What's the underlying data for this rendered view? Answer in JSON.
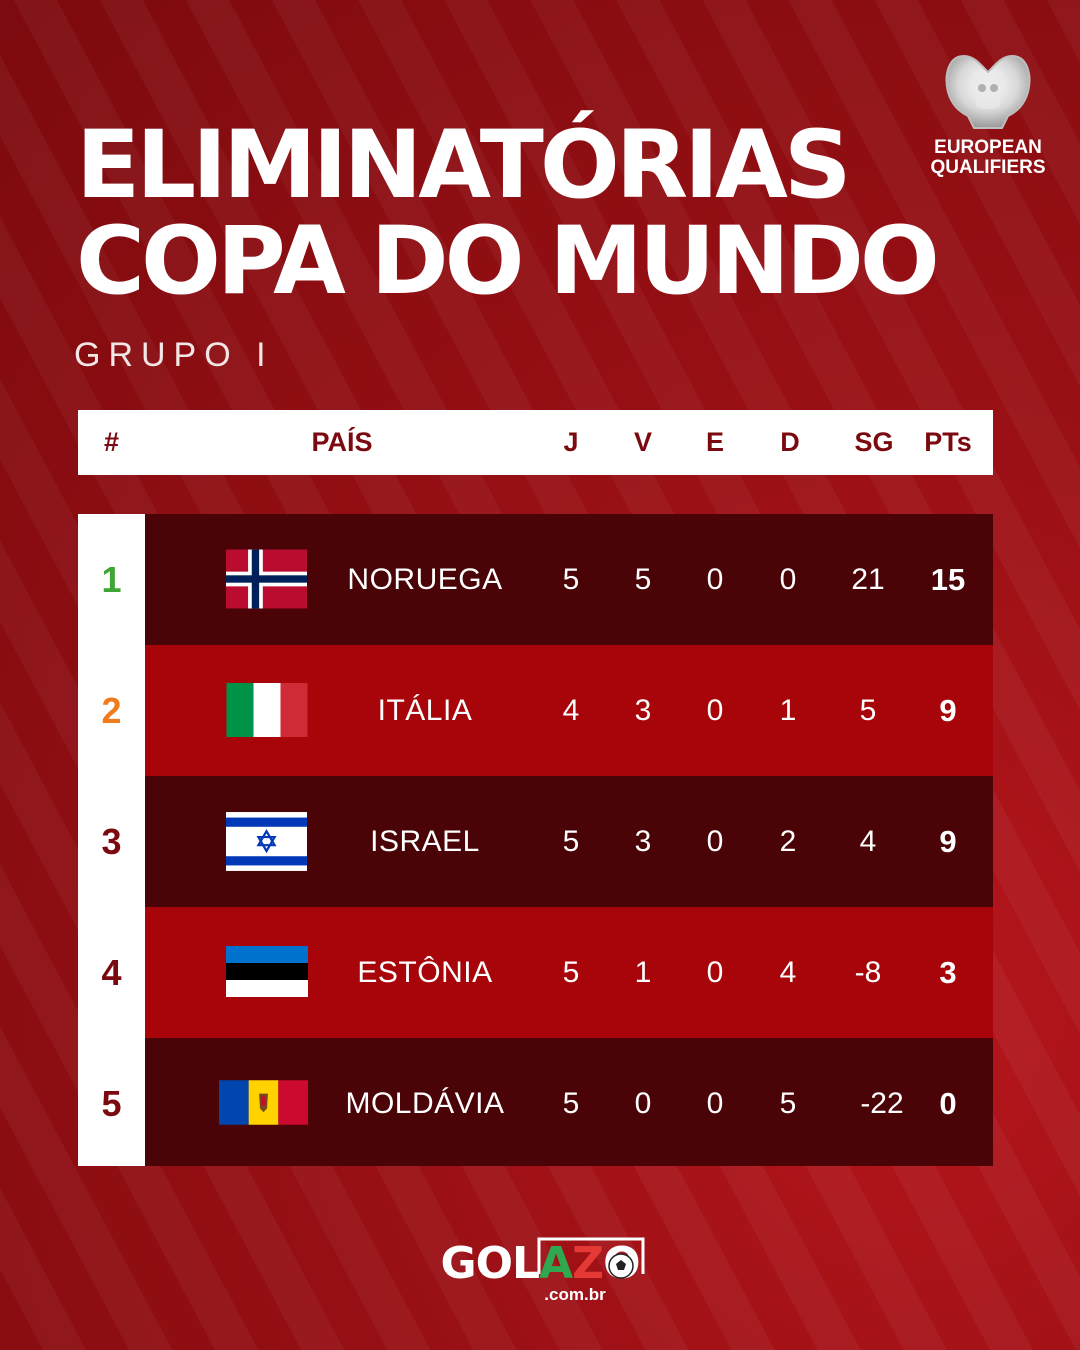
{
  "header": {
    "title_line1": "ELIMINATÓRIAS",
    "title_line2": "COPA DO MUNDO",
    "subtitle": "GRUPO I"
  },
  "logo": {
    "icon": "uefa-trophy-icon",
    "line1": "EUROPEAN",
    "line2": "QUALIFIERS"
  },
  "columns": {
    "pos": "#",
    "country": "PAÍS",
    "j": "J",
    "v": "V",
    "e": "E",
    "d": "D",
    "sg": "SG",
    "pts": "PTs"
  },
  "standings": [
    {
      "pos": "1",
      "country": "NORUEGA",
      "flag": "norway-flag-icon",
      "j": "5",
      "v": "5",
      "e": "0",
      "d": "0",
      "sg": "21",
      "pts": "15",
      "pos_color": "#3fa535"
    },
    {
      "pos": "2",
      "country": "ITÁLIA",
      "flag": "italy-flag-icon",
      "j": "4",
      "v": "3",
      "e": "0",
      "d": "1",
      "sg": "5",
      "pts": "9",
      "pos_color": "#f07b1a"
    },
    {
      "pos": "3",
      "country": "ISRAEL",
      "flag": "israel-flag-icon",
      "j": "5",
      "v": "3",
      "e": "0",
      "d": "2",
      "sg": "4",
      "pts": "9",
      "pos_color": "#7a0a0f"
    },
    {
      "pos": "4",
      "country": "ESTÔNIA",
      "flag": "estonia-flag-icon",
      "j": "5",
      "v": "1",
      "e": "0",
      "d": "4",
      "sg": "-8",
      "pts": "3",
      "pos_color": "#7a0a0f"
    },
    {
      "pos": "5",
      "country": "MOLDÁVIA",
      "flag": "moldova-flag-icon",
      "j": "5",
      "v": "0",
      "e": "0",
      "d": "5",
      "sg": "-22",
      "pts": "0",
      "pos_color": "#7a0a0f"
    }
  ],
  "brand": {
    "name_part1": "GOL",
    "name_part2": "A",
    "name_part3": "Z",
    "name_part4": "O",
    "domain": ".com.br"
  },
  "colors": {
    "background": "#8f0c11",
    "row_dark": "#4a0306",
    "row_light": "#a8050b",
    "header_text": "#7a0a0f"
  }
}
